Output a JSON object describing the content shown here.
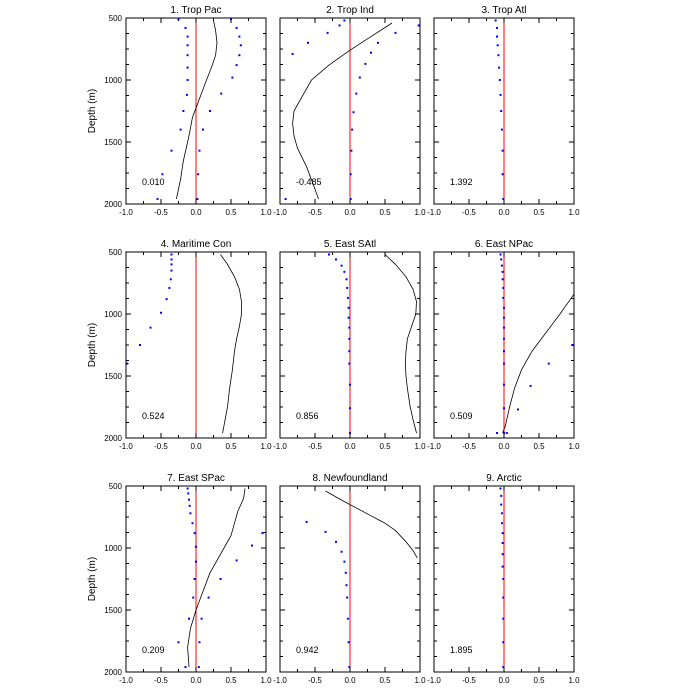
{
  "chart_data": {
    "type": "scatter",
    "ylabel": "Depth (m)",
    "xlim": [
      -1,
      1
    ],
    "ylim": [
      2000,
      500
    ],
    "x_ticks": [
      -1.0,
      -0.5,
      0.0,
      0.5,
      1.0
    ],
    "y_ticks": [
      500,
      1000,
      1500,
      2000
    ],
    "x_tick_labels": [
      "-1.0",
      "-0.5",
      "0.0",
      "0.5",
      "1.0"
    ],
    "y_tick_labels": [
      "500",
      "1000",
      "1500",
      "2000"
    ],
    "grid": false,
    "colors": {
      "points": "#0000ff",
      "zero_line": "#ff0000",
      "curve": "#000000",
      "axes": "#000000"
    },
    "panels": [
      {
        "title": "1. Trop Pac",
        "value_label": "0.010",
        "points": [
          [
            -0.25,
            510
          ],
          [
            -0.15,
            580
          ],
          [
            -0.12,
            650
          ],
          [
            -0.12,
            720
          ],
          [
            -0.12,
            800
          ],
          [
            -0.12,
            900
          ],
          [
            -0.12,
            1000
          ],
          [
            -0.13,
            1120
          ],
          [
            -0.18,
            1250
          ],
          [
            -0.22,
            1400
          ],
          [
            -0.35,
            1570
          ],
          [
            -0.48,
            1760
          ],
          [
            -0.55,
            1960
          ],
          [
            0.5,
            510
          ],
          [
            0.58,
            580
          ],
          [
            0.62,
            650
          ],
          [
            0.64,
            720
          ],
          [
            0.62,
            800
          ],
          [
            0.58,
            880
          ],
          [
            0.52,
            980
          ],
          [
            0.36,
            1110
          ],
          [
            0.2,
            1250
          ],
          [
            0.1,
            1400
          ],
          [
            0.05,
            1570
          ],
          [
            0.03,
            1760
          ],
          [
            0.02,
            1960
          ]
        ],
        "curve": [
          [
            0.25,
            520
          ],
          [
            0.28,
            600
          ],
          [
            0.3,
            700
          ],
          [
            0.28,
            800
          ],
          [
            0.22,
            900
          ],
          [
            0.15,
            1000
          ],
          [
            0.05,
            1150
          ],
          [
            -0.05,
            1300
          ],
          [
            -0.1,
            1450
          ],
          [
            -0.18,
            1650
          ],
          [
            -0.22,
            1800
          ],
          [
            -0.28,
            1960
          ]
        ]
      },
      {
        "title": "2. Trop Ind",
        "value_label": "-0.485",
        "points": [
          [
            -0.08,
            520
          ],
          [
            -0.15,
            560
          ],
          [
            -0.32,
            620
          ],
          [
            -0.6,
            700
          ],
          [
            -0.82,
            790
          ],
          [
            0.98,
            560
          ],
          [
            0.65,
            620
          ],
          [
            0.4,
            700
          ],
          [
            0.3,
            780
          ],
          [
            0.22,
            870
          ],
          [
            0.14,
            980
          ],
          [
            0.09,
            1110
          ],
          [
            0.05,
            1260
          ],
          [
            0.03,
            1400
          ],
          [
            0.02,
            1570
          ],
          [
            0.01,
            1760
          ],
          [
            0.01,
            1960
          ],
          [
            -0.92,
            1960
          ]
        ],
        "curve": [
          [
            0.6,
            540
          ],
          [
            0.3,
            650
          ],
          [
            0.0,
            760
          ],
          [
            -0.3,
            880
          ],
          [
            -0.55,
            1000
          ],
          [
            -0.7,
            1150
          ],
          [
            -0.8,
            1250
          ],
          [
            -0.82,
            1350
          ],
          [
            -0.8,
            1450
          ],
          [
            -0.75,
            1550
          ],
          [
            -0.62,
            1700
          ],
          [
            -0.52,
            1850
          ],
          [
            -0.45,
            1960
          ]
        ]
      },
      {
        "title": "3. Trop Atl",
        "value_label": "1.392",
        "points": [
          [
            -0.12,
            520
          ],
          [
            -0.1,
            580
          ],
          [
            -0.1,
            650
          ],
          [
            -0.09,
            720
          ],
          [
            -0.08,
            800
          ],
          [
            -0.07,
            900
          ],
          [
            -0.06,
            1000
          ],
          [
            -0.05,
            1120
          ],
          [
            -0.04,
            1250
          ],
          [
            -0.03,
            1400
          ],
          [
            -0.02,
            1570
          ],
          [
            -0.02,
            1760
          ],
          [
            -0.01,
            1960
          ]
        ],
        "curve": []
      },
      {
        "title": "4. Maritime Con",
        "value_label": "0.524",
        "points": [
          [
            -0.35,
            520
          ],
          [
            -0.35,
            560
          ],
          [
            -0.35,
            600
          ],
          [
            -0.35,
            650
          ],
          [
            -0.36,
            720
          ],
          [
            -0.38,
            790
          ],
          [
            -0.42,
            880
          ],
          [
            -0.5,
            990
          ],
          [
            -0.65,
            1110
          ],
          [
            -0.8,
            1250
          ],
          [
            -0.98,
            1400
          ]
        ],
        "curve": [
          [
            0.35,
            520
          ],
          [
            0.45,
            600
          ],
          [
            0.55,
            700
          ],
          [
            0.62,
            800
          ],
          [
            0.65,
            900
          ],
          [
            0.65,
            1000
          ],
          [
            0.62,
            1100
          ],
          [
            0.58,
            1200
          ],
          [
            0.55,
            1300
          ],
          [
            0.52,
            1450
          ],
          [
            0.48,
            1600
          ],
          [
            0.45,
            1750
          ],
          [
            0.4,
            1900
          ],
          [
            0.38,
            1960
          ]
        ]
      },
      {
        "title": "5. East SAtl",
        "value_label": "0.856",
        "points": [
          [
            -0.3,
            520
          ],
          [
            -0.2,
            560
          ],
          [
            -0.12,
            610
          ],
          [
            -0.08,
            660
          ],
          [
            -0.05,
            720
          ],
          [
            -0.04,
            790
          ],
          [
            -0.03,
            870
          ],
          [
            -0.02,
            950
          ],
          [
            -0.02,
            1030
          ],
          [
            -0.01,
            1110
          ],
          [
            -0.01,
            1200
          ],
          [
            -0.01,
            1300
          ],
          [
            -0.01,
            1400
          ],
          [
            0.0,
            1570
          ],
          [
            0.0,
            1760
          ],
          [
            0.0,
            1960
          ]
        ],
        "curve": [
          [
            0.5,
            520
          ],
          [
            0.65,
            600
          ],
          [
            0.8,
            700
          ],
          [
            0.9,
            800
          ],
          [
            0.95,
            900
          ],
          [
            0.94,
            1000
          ],
          [
            0.88,
            1100
          ],
          [
            0.82,
            1200
          ],
          [
            0.8,
            1300
          ],
          [
            0.79,
            1400
          ],
          [
            0.8,
            1500
          ],
          [
            0.82,
            1600
          ],
          [
            0.86,
            1750
          ],
          [
            0.9,
            1850
          ],
          [
            0.95,
            1960
          ]
        ]
      },
      {
        "title": "6. East NPac",
        "value_label": "0.509",
        "points": [
          [
            -0.05,
            520
          ],
          [
            -0.04,
            560
          ],
          [
            -0.03,
            610
          ],
          [
            -0.02,
            660
          ],
          [
            -0.02,
            720
          ],
          [
            -0.01,
            790
          ],
          [
            -0.01,
            870
          ],
          [
            0.0,
            950
          ],
          [
            0.0,
            1030
          ],
          [
            0.0,
            1110
          ],
          [
            0.0,
            1200
          ],
          [
            0.0,
            1300
          ],
          [
            0.0,
            1400
          ],
          [
            0.0,
            1570
          ],
          [
            0.0,
            1760
          ],
          [
            0.0,
            1960
          ],
          [
            0.98,
            1250
          ],
          [
            0.64,
            1400
          ],
          [
            0.38,
            1580
          ],
          [
            0.2,
            1770
          ],
          [
            0.04,
            1960
          ],
          [
            -0.1,
            1960
          ]
        ],
        "curve": [
          [
            1.0,
            840
          ],
          [
            0.8,
            1000
          ],
          [
            0.6,
            1150
          ],
          [
            0.4,
            1300
          ],
          [
            0.25,
            1450
          ],
          [
            0.15,
            1600
          ],
          [
            0.08,
            1750
          ],
          [
            0.02,
            1900
          ],
          [
            -0.02,
            1960
          ]
        ]
      },
      {
        "title": "7. East SPac",
        "value_label": "0.209",
        "points": [
          [
            -0.12,
            520
          ],
          [
            -0.11,
            560
          ],
          [
            -0.1,
            610
          ],
          [
            -0.09,
            660
          ],
          [
            -0.08,
            720
          ],
          [
            -0.05,
            800
          ],
          [
            -0.02,
            880
          ],
          [
            0.0,
            990
          ],
          [
            0.0,
            1110
          ],
          [
            -0.02,
            1250
          ],
          [
            -0.04,
            1400
          ],
          [
            -0.1,
            1570
          ],
          [
            -0.25,
            1760
          ],
          [
            -0.15,
            1960
          ],
          [
            0.95,
            880
          ],
          [
            0.8,
            980
          ],
          [
            0.58,
            1100
          ],
          [
            0.35,
            1250
          ],
          [
            0.18,
            1400
          ],
          [
            0.08,
            1570
          ],
          [
            0.05,
            1760
          ],
          [
            0.04,
            1960
          ]
        ],
        "curve": [
          [
            0.7,
            520
          ],
          [
            0.68,
            600
          ],
          [
            0.6,
            700
          ],
          [
            0.55,
            800
          ],
          [
            0.5,
            900
          ],
          [
            0.4,
            1000
          ],
          [
            0.3,
            1100
          ],
          [
            0.2,
            1200
          ],
          [
            0.1,
            1350
          ],
          [
            0.0,
            1500
          ],
          [
            -0.08,
            1650
          ],
          [
            -0.12,
            1800
          ],
          [
            -0.1,
            1960
          ]
        ]
      },
      {
        "title": "8. Newfoundland",
        "value_label": "0.942",
        "points": [
          [
            -0.62,
            790
          ],
          [
            -0.35,
            870
          ],
          [
            -0.2,
            950
          ],
          [
            -0.12,
            1030
          ],
          [
            -0.08,
            1110
          ],
          [
            -0.06,
            1200
          ],
          [
            -0.05,
            1300
          ],
          [
            -0.04,
            1400
          ],
          [
            -0.03,
            1570
          ],
          [
            -0.02,
            1760
          ],
          [
            -0.01,
            1960
          ]
        ],
        "curve": [
          [
            -0.35,
            540
          ],
          [
            -0.1,
            620
          ],
          [
            0.1,
            680
          ],
          [
            0.3,
            740
          ],
          [
            0.5,
            800
          ],
          [
            0.65,
            860
          ],
          [
            0.8,
            950
          ],
          [
            0.9,
            1020
          ],
          [
            0.96,
            1080
          ]
        ]
      },
      {
        "title": "9. Arctic",
        "value_label": "1.895",
        "points": [
          [
            -0.05,
            520
          ],
          [
            -0.04,
            580
          ],
          [
            -0.04,
            650
          ],
          [
            -0.03,
            720
          ],
          [
            -0.03,
            800
          ],
          [
            -0.02,
            880
          ],
          [
            -0.02,
            960
          ],
          [
            -0.02,
            1050
          ],
          [
            -0.02,
            1150
          ],
          [
            -0.01,
            1250
          ],
          [
            -0.01,
            1400
          ],
          [
            -0.01,
            1570
          ],
          [
            -0.01,
            1760
          ],
          [
            -0.01,
            1960
          ]
        ],
        "curve": []
      }
    ]
  }
}
